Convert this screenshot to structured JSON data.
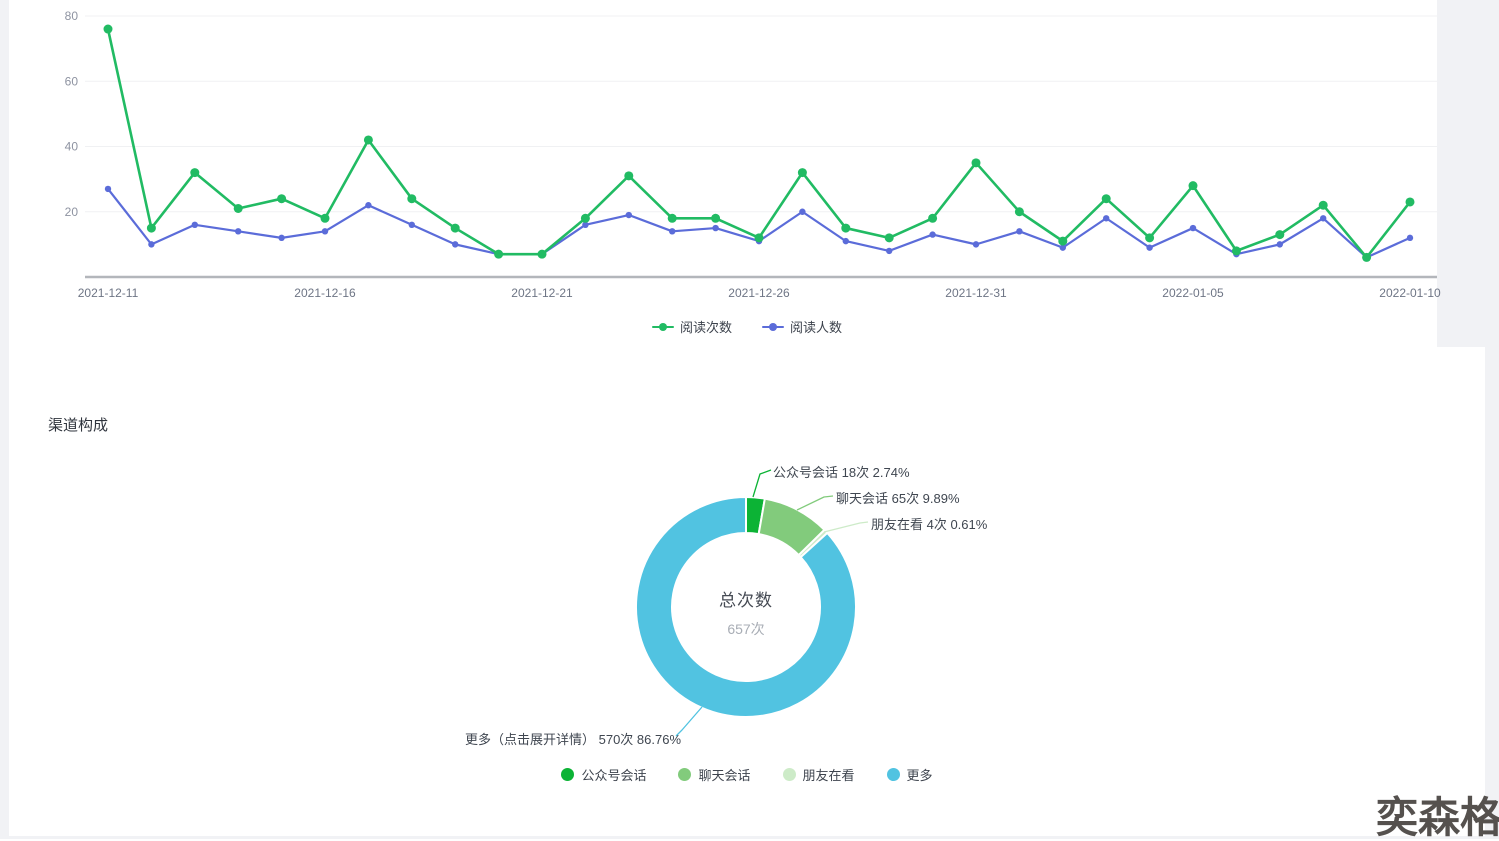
{
  "watermark": {
    "text": "奕森格"
  },
  "section": {
    "title": "渠道构成"
  },
  "chart_data": [
    {
      "type": "line",
      "x": [
        "2021-12-11",
        "2021-12-12",
        "2021-12-13",
        "2021-12-14",
        "2021-12-15",
        "2021-12-16",
        "2021-12-17",
        "2021-12-18",
        "2021-12-19",
        "2021-12-20",
        "2021-12-21",
        "2021-12-22",
        "2021-12-23",
        "2021-12-24",
        "2021-12-25",
        "2021-12-26",
        "2021-12-27",
        "2021-12-28",
        "2021-12-29",
        "2021-12-30",
        "2021-12-31",
        "2022-01-01",
        "2022-01-02",
        "2022-01-03",
        "2022-01-04",
        "2022-01-05",
        "2022-01-06",
        "2022-01-07",
        "2022-01-08",
        "2022-01-09",
        "2022-01-10"
      ],
      "x_tick_labels": [
        "2021-12-11",
        "2021-12-16",
        "2021-12-21",
        "2021-12-26",
        "2021-12-31",
        "2022-01-05",
        "2022-01-10"
      ],
      "x_tick_indices": [
        0,
        5,
        10,
        15,
        20,
        25,
        30
      ],
      "series": [
        {
          "name": "阅读次数",
          "color": "#21bb63",
          "values": [
            76,
            15,
            32,
            21,
            24,
            18,
            42,
            24,
            15,
            7,
            7,
            18,
            31,
            18,
            18,
            12,
            32,
            15,
            12,
            18,
            35,
            20,
            11,
            24,
            12,
            28,
            8,
            13,
            22,
            6,
            23
          ]
        },
        {
          "name": "阅读人数",
          "color": "#5b6cd9",
          "values": [
            27,
            10,
            16,
            14,
            12,
            14,
            22,
            16,
            10,
            7,
            7,
            16,
            19,
            14,
            15,
            11,
            20,
            11,
            8,
            13,
            10,
            14,
            9,
            18,
            9,
            15,
            7,
            10,
            18,
            6,
            12
          ]
        }
      ],
      "ylim": [
        0,
        80
      ],
      "yticks": [
        20,
        40,
        60,
        80
      ],
      "grid": true,
      "legend_position": "bottom",
      "axis_color": "#b3b6bb",
      "grid_color": "#f0f1f3",
      "y_label_color": "#8e93a1",
      "x_label_color": "#6e7585"
    },
    {
      "type": "pie",
      "title": "渠道构成",
      "center_label": "总次数",
      "center_value": "657次",
      "total": 657,
      "unit": "次",
      "slices": [
        {
          "name": "公众号会话",
          "value": 18,
          "percent": 2.74,
          "color": "#0cb335",
          "callout": "公众号会话 18次 2.74%"
        },
        {
          "name": "聊天会话",
          "value": 65,
          "percent": 9.89,
          "color": "#82cb7c",
          "callout": "聊天会话 65次 9.89%"
        },
        {
          "name": "朋友在看",
          "value": 4,
          "percent": 0.61,
          "color": "#cdebc8",
          "callout": "朋友在看 4次 0.61%"
        },
        {
          "name": "更多",
          "value": 570,
          "percent": 86.76,
          "color": "#51c3e1",
          "callout": "更多（点击展开详情） 570次 86.76%"
        }
      ],
      "legend": [
        "公众号会话",
        "聊天会话",
        "朋友在看",
        "更多"
      ],
      "legend_position": "bottom"
    }
  ]
}
